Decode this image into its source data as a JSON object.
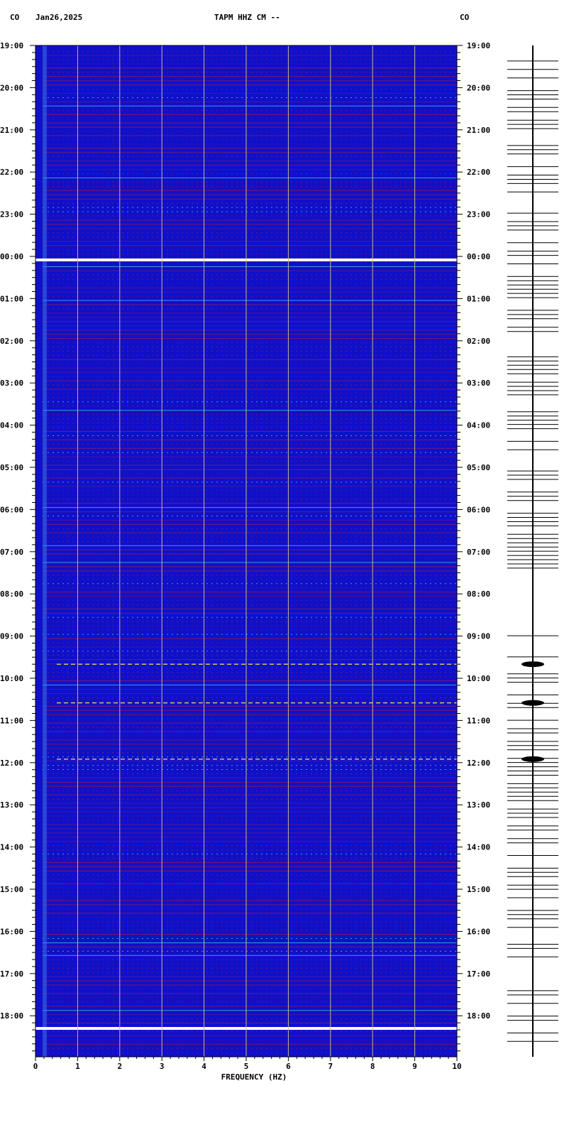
{
  "header": {
    "network_left": "CO",
    "date": "Jan26,2025",
    "station_title": "TAPM HHZ CM --",
    "network_right": "CO"
  },
  "chart_data": {
    "type": "heatmap",
    "xlabel": "FREQUENCY (HZ)",
    "xlim": [
      0,
      10
    ],
    "x_ticks": [
      "0",
      "1",
      "2",
      "3",
      "4",
      "5",
      "6",
      "7",
      "8",
      "9",
      "10"
    ],
    "y_ticks": [
      "19:00",
      "20:00",
      "21:00",
      "22:00",
      "23:00",
      "00:00",
      "01:00",
      "02:00",
      "03:00",
      "04:00",
      "05:00",
      "06:00",
      "07:00",
      "08:00",
      "09:00",
      "10:00",
      "11:00",
      "12:00",
      "13:00",
      "14:00",
      "15:00",
      "16:00",
      "17:00",
      "18:00"
    ],
    "colors": {
      "background": "#1010c8",
      "hot": "#d02020",
      "cyan": "#40e0e0",
      "white": "#ffffff",
      "grid": "#c8b48c"
    },
    "gaps_at": [
      "00:05",
      "18:18"
    ],
    "bright_events": [
      "09:40",
      "10:35",
      "11:55"
    ]
  }
}
